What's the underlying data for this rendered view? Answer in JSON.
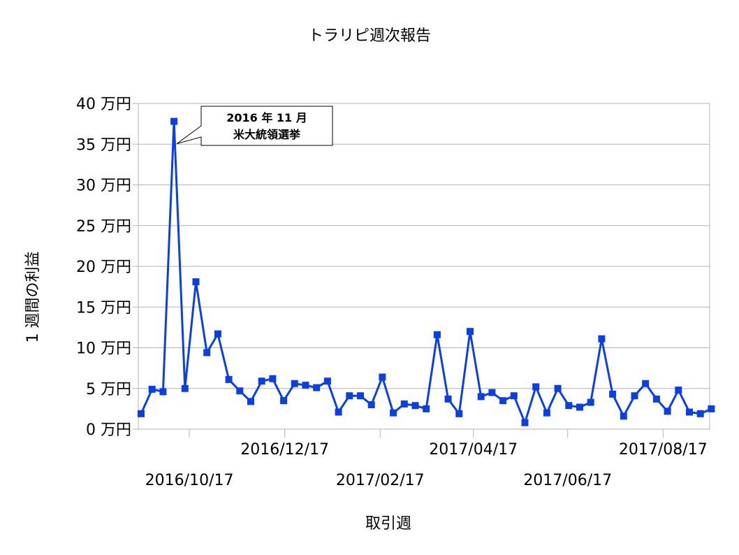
{
  "chart_data": {
    "type": "line",
    "title": "トラリピ週次報告",
    "xlabel": "取引週",
    "ylabel": "1 週間の利益",
    "ylim": [
      0,
      40
    ],
    "yticks": [
      {
        "value": 0,
        "label": "0 万円"
      },
      {
        "value": 5,
        "label": "5 万円"
      },
      {
        "value": 10,
        "label": "10 万円"
      },
      {
        "value": 15,
        "label": "15 万円"
      },
      {
        "value": 20,
        "label": "20 万円"
      },
      {
        "value": 25,
        "label": "25 万円"
      },
      {
        "value": 30,
        "label": "30 万円"
      },
      {
        "value": 35,
        "label": "35 万円"
      },
      {
        "value": 40,
        "label": "40 万円"
      }
    ],
    "xticks": [
      {
        "week": 4.4,
        "label": "2016/10/17",
        "row": 2
      },
      {
        "week": 13.1,
        "label": "2016/12/17",
        "row": 1
      },
      {
        "week": 21.8,
        "label": "2017/02/17",
        "row": 2
      },
      {
        "week": 30.3,
        "label": "2017/04/17",
        "row": 1
      },
      {
        "week": 38.9,
        "label": "2017/06/17",
        "row": 2
      },
      {
        "week": 47.6,
        "label": "2017/08/17",
        "row": 1
      }
    ],
    "grid": true,
    "series": [
      {
        "color": "#0a3fe6",
        "marker": "square",
        "values": [
          1.9,
          4.9,
          4.6,
          37.8,
          5.0,
          18.1,
          9.4,
          11.7,
          6.1,
          4.7,
          3.4,
          5.9,
          6.2,
          3.5,
          5.6,
          5.4,
          5.1,
          5.9,
          2.1,
          4.1,
          4.1,
          3.0,
          6.4,
          2.0,
          3.1,
          2.9,
          2.5,
          11.6,
          3.7,
          1.9,
          12.0,
          4.0,
          4.5,
          3.5,
          4.1,
          0.8,
          5.2,
          2.0,
          5.0,
          2.9,
          2.7,
          3.3,
          11.1,
          4.3,
          1.6,
          4.1,
          5.6,
          3.7,
          2.2,
          4.8,
          2.1,
          1.9,
          2.5
        ]
      }
    ],
    "annotations": [
      {
        "point_index": 3,
        "lines": [
          "2016 年 11 月",
          "米大統領選挙"
        ]
      }
    ]
  }
}
